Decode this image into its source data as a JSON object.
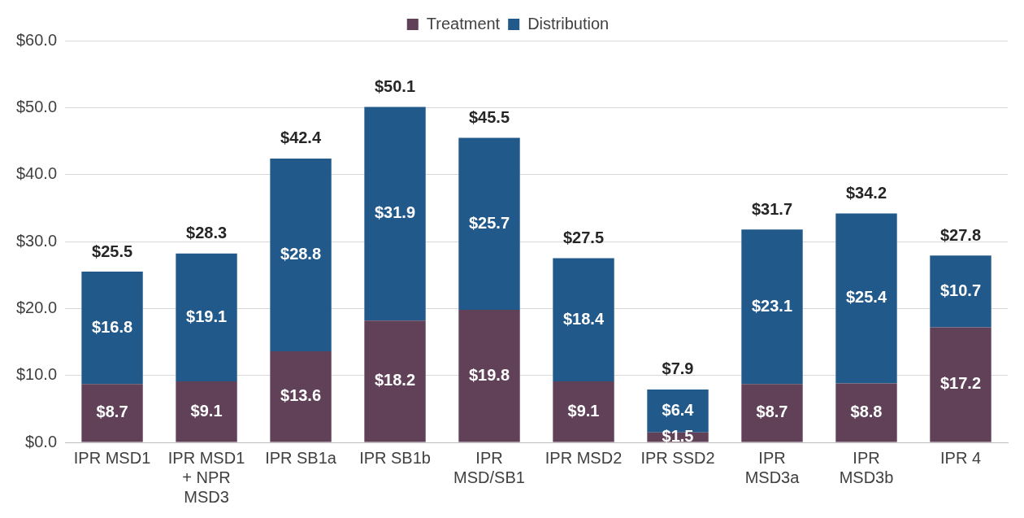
{
  "chart_data": {
    "type": "bar",
    "stacked": true,
    "categories": [
      "IPR MSD1",
      "IPR MSD1 + NPR MSD3",
      "IPR SB1a",
      "IPR SB1b",
      "IPR MSD/SB1",
      "IPR MSD2",
      "IPR SSD2",
      "IPR MSD3a",
      "IPR MSD3b",
      "IPR 4"
    ],
    "series": [
      {
        "name": "Treatment",
        "color": "#604158",
        "values": [
          8.7,
          9.1,
          13.6,
          18.2,
          19.8,
          9.1,
          1.5,
          8.7,
          8.8,
          17.2
        ],
        "value_labels": [
          "$8.7",
          "$9.1",
          "$13.6",
          "$18.2",
          "$19.8",
          "$9.1",
          "$1.5",
          "$8.7",
          "$8.8",
          "$17.2"
        ]
      },
      {
        "name": "Distribution",
        "color": "#22598b",
        "values": [
          16.8,
          19.1,
          28.8,
          31.9,
          25.7,
          18.4,
          6.4,
          23.1,
          25.4,
          10.7
        ],
        "value_labels": [
          "$16.8",
          "$19.1",
          "$28.8",
          "$31.9",
          "$25.7",
          "$18.4",
          "$6.4",
          "$23.1",
          "$25.4",
          "$10.7"
        ]
      }
    ],
    "totals": [
      "$25.5",
      "$28.3",
      "$42.4",
      "$50.1",
      "$45.5",
      "$27.5",
      "$7.9",
      "$31.7",
      "$34.2",
      "$27.8"
    ],
    "ylim": [
      0,
      60
    ],
    "yticks": [
      {
        "value": 0,
        "label": "$0.0"
      },
      {
        "value": 10,
        "label": "$10.0"
      },
      {
        "value": 20,
        "label": "$20.0"
      },
      {
        "value": 30,
        "label": "$30.0"
      },
      {
        "value": 40,
        "label": "$40.0"
      },
      {
        "value": 50,
        "label": "$50.0"
      },
      {
        "value": 60,
        "label": "$60.0"
      }
    ],
    "grid": "y",
    "legend": "top"
  }
}
